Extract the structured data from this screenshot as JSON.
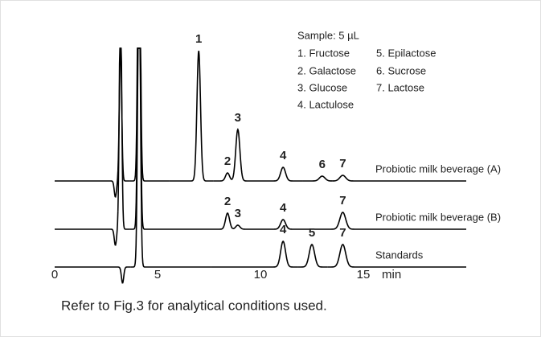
{
  "chart_data": {
    "type": "chromatogram",
    "xlim": [
      0,
      20
    ],
    "xticks": [
      0,
      5,
      10,
      15
    ],
    "x_label": "min",
    "color": "#000000",
    "legend": {
      "title": "Sample: 5 µL",
      "items": [
        "1. Fructose",
        "2. Galactose",
        "3. Glucose",
        "4. Lactulose",
        "5. Epilactose",
        "6. Sucrose",
        "7. Lactose"
      ]
    },
    "footnote": "Refer to Fig.3 for analytical conditions used.",
    "series": [
      {
        "name": "Probiotic milk beverage (A)",
        "x": [
          2.95,
          3.2,
          4.1,
          7.0,
          8.4,
          8.9,
          11.1,
          13.0,
          14.0
        ],
        "values": [
          -20,
          170,
          400,
          162,
          10,
          64,
          17,
          6,
          7
        ],
        "labels": [
          null,
          null,
          null,
          "1",
          "2",
          "3",
          "4",
          "6",
          "7"
        ]
      },
      {
        "name": "Probiotic milk beverage (B)",
        "x": [
          2.95,
          3.2,
          4.1,
          8.4,
          8.9,
          11.1,
          14.0
        ],
        "values": [
          -20,
          300,
          400,
          20,
          5,
          12,
          21
        ],
        "labels": [
          null,
          null,
          null,
          "2",
          "3",
          "4",
          "7"
        ]
      },
      {
        "name": "Standards",
        "x": [
          3.3,
          4.1,
          11.1,
          12.5,
          14.0
        ],
        "values": [
          -20,
          400,
          32,
          28,
          28
        ],
        "labels": [
          null,
          null,
          "4",
          "5",
          "7"
        ]
      }
    ]
  }
}
